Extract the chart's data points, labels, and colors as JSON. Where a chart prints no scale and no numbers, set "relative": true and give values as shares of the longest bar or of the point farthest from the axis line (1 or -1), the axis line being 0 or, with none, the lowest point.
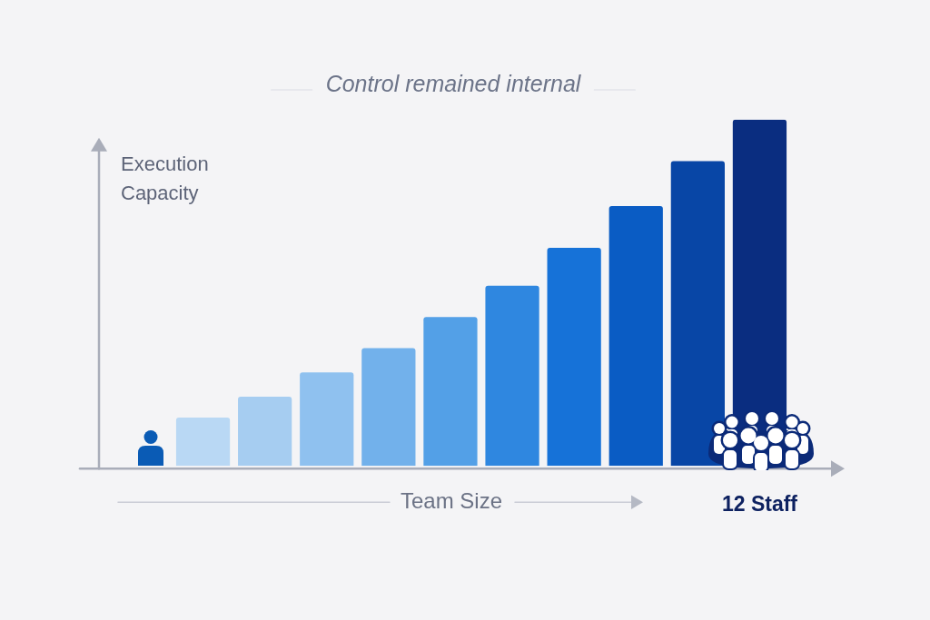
{
  "chart_data": {
    "type": "bar",
    "title": "Control remained internal",
    "xlabel": "Team Size",
    "ylabel": "Execution Capacity",
    "categories": [
      null,
      null,
      null,
      null,
      null,
      null,
      null,
      null,
      null,
      "12 Staff"
    ],
    "values": [
      0.14,
      0.2,
      0.27,
      0.34,
      0.43,
      0.52,
      0.63,
      0.75,
      0.88,
      1
    ],
    "colors": [
      "#b9d8f4",
      "#a6cdf1",
      "#8fc1ef",
      "#72b1eb",
      "#53a0e7",
      "#2f87e0",
      "#1672d8",
      "#0a5cc4",
      "#0846a6",
      "#0a2d80"
    ],
    "relative": true
  }
}
